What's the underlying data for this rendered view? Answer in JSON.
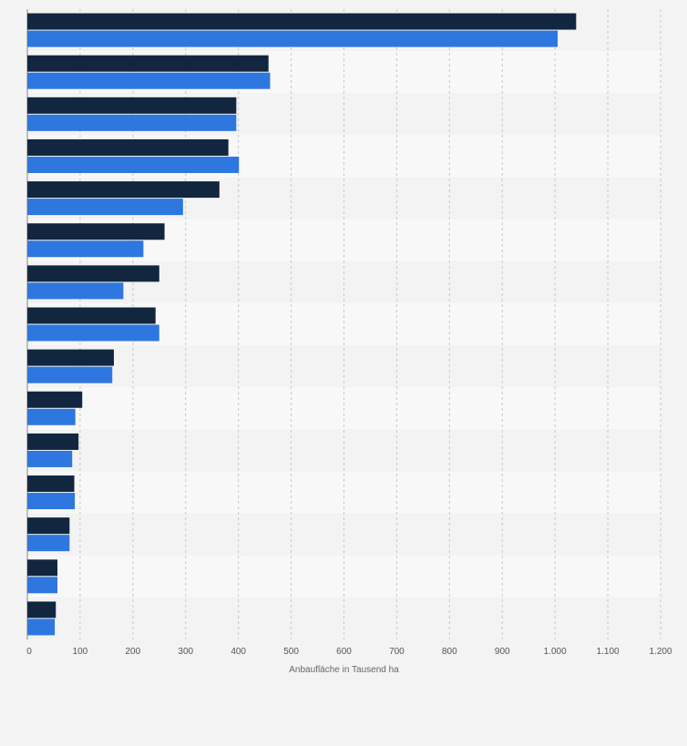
{
  "chart_data": {
    "type": "bar",
    "orientation": "horizontal",
    "xlabel": "Anbaufläche in Tausend ha",
    "xlim": [
      0,
      1200
    ],
    "x_ticks": [
      0,
      100,
      200,
      300,
      400,
      500,
      600,
      700,
      800,
      900,
      1000,
      1100,
      1200
    ],
    "x_tick_labels": [
      "0",
      "100",
      "200",
      "300",
      "400",
      "500",
      "600",
      "700",
      "800",
      "900",
      "1.000",
      "1.100",
      "1.200"
    ],
    "grid": true,
    "series": [
      {
        "color": "#12263f",
        "values": [
          1040,
          457,
          396,
          381,
          364,
          260,
          250,
          243,
          164,
          104,
          97,
          89,
          80,
          57,
          54
        ]
      },
      {
        "color": "#2d77de",
        "values": [
          1005,
          460,
          396,
          401,
          295,
          220,
          182,
          250,
          161,
          91,
          85,
          90,
          80,
          57,
          52
        ]
      }
    ]
  }
}
